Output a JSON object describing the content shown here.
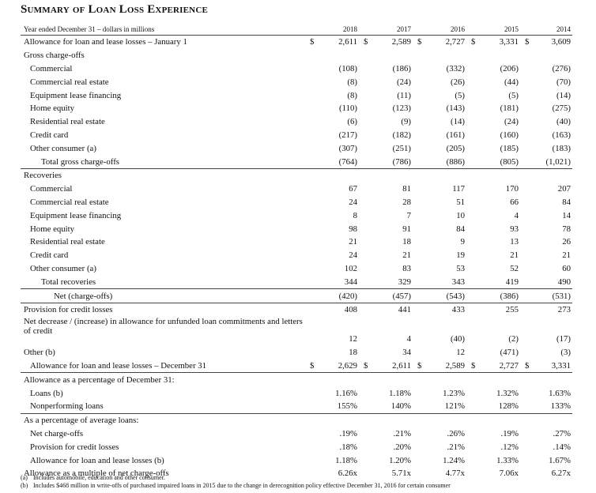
{
  "title": "Summary of Loan Loss Experience",
  "header": {
    "label": "Year ended December 31 – dollars in millions",
    "years": [
      "2018",
      "2017",
      "2016",
      "2015",
      "2014"
    ]
  },
  "rows": [
    {
      "label": "Allowance for loan and lease losses – January 1",
      "vals": [
        "2,611",
        "2,589",
        "2,727",
        "3,331",
        "3,609"
      ],
      "dollar": true
    },
    {
      "label": "Gross charge-offs",
      "vals": [
        "",
        "",
        "",
        "",
        ""
      ]
    },
    {
      "label": "Commercial",
      "vals": [
        "(108)",
        "(186)",
        "(332)",
        "(206)",
        "(276)"
      ]
    },
    {
      "label": "Commercial real estate",
      "vals": [
        "(8)",
        "(24)",
        "(26)",
        "(44)",
        "(70)"
      ]
    },
    {
      "label": "Equipment lease financing",
      "vals": [
        "(8)",
        "(11)",
        "(5)",
        "(5)",
        "(14)"
      ]
    },
    {
      "label": "Home equity",
      "vals": [
        "(110)",
        "(123)",
        "(143)",
        "(181)",
        "(275)"
      ]
    },
    {
      "label": "Residential real estate",
      "vals": [
        "(6)",
        "(9)",
        "(14)",
        "(24)",
        "(40)"
      ]
    },
    {
      "label": "Credit card",
      "vals": [
        "(217)",
        "(182)",
        "(161)",
        "(160)",
        "(163)"
      ]
    },
    {
      "label": "Other consumer (a)",
      "vals": [
        "(307)",
        "(251)",
        "(205)",
        "(185)",
        "(183)"
      ]
    },
    {
      "label": "Total gross charge-offs",
      "vals": [
        "(764)",
        "(786)",
        "(886)",
        "(805)",
        "(1,021)"
      ]
    },
    {
      "label": "Recoveries",
      "vals": [
        "",
        "",
        "",
        "",
        ""
      ]
    },
    {
      "label": "Commercial",
      "vals": [
        "67",
        "81",
        "117",
        "170",
        "207"
      ]
    },
    {
      "label": "Commercial real estate",
      "vals": [
        "24",
        "28",
        "51",
        "66",
        "84"
      ]
    },
    {
      "label": "Equipment lease financing",
      "vals": [
        "8",
        "7",
        "10",
        "4",
        "14"
      ]
    },
    {
      "label": "Home equity",
      "vals": [
        "98",
        "91",
        "84",
        "93",
        "78"
      ]
    },
    {
      "label": "Residential real estate",
      "vals": [
        "21",
        "18",
        "9",
        "13",
        "26"
      ]
    },
    {
      "label": "Credit card",
      "vals": [
        "24",
        "21",
        "19",
        "21",
        "21"
      ]
    },
    {
      "label": "Other consumer (a)",
      "vals": [
        "102",
        "83",
        "53",
        "52",
        "60"
      ]
    },
    {
      "label": "Total recoveries",
      "vals": [
        "344",
        "329",
        "343",
        "419",
        "490"
      ]
    },
    {
      "label": "Net (charge-offs)",
      "vals": [
        "(420)",
        "(457)",
        "(543)",
        "(386)",
        "(531)"
      ]
    },
    {
      "label": "Provision for credit losses",
      "vals": [
        "408",
        "441",
        "433",
        "255",
        "273"
      ]
    },
    {
      "label": "Net decrease / (increase) in allowance for unfunded loan commitments and letters of credit",
      "vals": [
        "12",
        "4",
        "(40)",
        "(2)",
        "(17)"
      ]
    },
    {
      "label": "Other (b)",
      "vals": [
        "18",
        "34",
        "12",
        "(471)",
        "(3)"
      ]
    },
    {
      "label": "Allowance for loan and lease losses – December 31",
      "vals": [
        "2,629",
        "2,611",
        "2,589",
        "2,727",
        "3,331"
      ],
      "dollar": true
    },
    {
      "label": "Allowance as a percentage of December 31:",
      "vals": [
        "",
        "",
        "",
        "",
        ""
      ]
    },
    {
      "label": "Loans (b)",
      "vals": [
        "1.16%",
        "1.18%",
        "1.23%",
        "1.32%",
        "1.63%"
      ]
    },
    {
      "label": "Nonperforming loans",
      "vals": [
        "155%",
        "140%",
        "121%",
        "128%",
        "133%"
      ]
    },
    {
      "label": "As a percentage of average loans:",
      "vals": [
        "",
        "",
        "",
        "",
        ""
      ]
    },
    {
      "label": "Net charge-offs",
      "vals": [
        ".19%",
        ".21%",
        ".26%",
        ".19%",
        ".27%"
      ]
    },
    {
      "label": "Provision for credit losses",
      "vals": [
        ".18%",
        ".20%",
        ".21%",
        ".12%",
        ".14%"
      ]
    },
    {
      "label": "Allowance for loan and lease losses (b)",
      "vals": [
        "1.18%",
        "1.20%",
        "1.24%",
        "1.33%",
        "1.67%"
      ]
    },
    {
      "label": "Allowance as a multiple of net charge-offs",
      "vals": [
        "6.26x",
        "5.71x",
        "4.77x",
        "7.06x",
        "6.27x"
      ]
    }
  ],
  "currency_symbol": "$",
  "footnotes": [
    {
      "mark": "(a)",
      "text": "Includes automobile, education and other consumer."
    },
    {
      "mark": "(b)",
      "text": "Includes $468 million in write-offs of purchased impaired loans in 2015 due to the change in derecognition policy effective December 31, 2016 for certain consumer"
    }
  ]
}
